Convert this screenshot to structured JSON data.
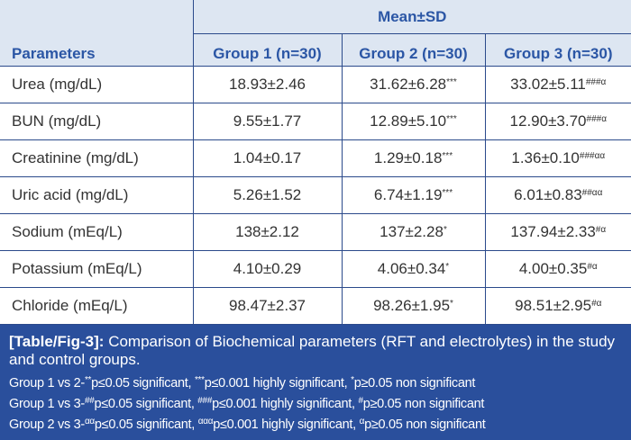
{
  "table": {
    "group_header": "Mean±SD",
    "columns": [
      "Parameters",
      "Group 1 (n=30)",
      "Group 2 (n=30)",
      "Group 3 (n=30)"
    ],
    "rows": [
      {
        "param": "Urea (mg/dL)",
        "g1": "18.93±2.46",
        "g2": "31.62±6.28",
        "g2_sup": "***",
        "g3": "33.02±5.11",
        "g3_sup": "###α"
      },
      {
        "param": "BUN (mg/dL)",
        "g1": "9.55±1.77",
        "g2": "12.89±5.10",
        "g2_sup": "***",
        "g3": "12.90±3.70",
        "g3_sup": "###α"
      },
      {
        "param": "Creatinine (mg/dL)",
        "g1": "1.04±0.17",
        "g2": "1.29±0.18",
        "g2_sup": "***",
        "g3": "1.36±0.10",
        "g3_sup": "###αα"
      },
      {
        "param": "Uric acid (mg/dL)",
        "g1": "5.26±1.52",
        "g2": "6.74±1.19",
        "g2_sup": "***",
        "g3": "6.01±0.83",
        "g3_sup": "##αα"
      },
      {
        "param": "Sodium (mEq/L)",
        "g1": "138±2.12",
        "g2": "137±2.28",
        "g2_sup": "*",
        "g3": "137.94±2.33",
        "g3_sup": "#α"
      },
      {
        "param": "Potassium (mEq/L)",
        "g1": "4.10±0.29",
        "g2": "4.06±0.34",
        "g2_sup": "*",
        "g3": "4.00±0.35",
        "g3_sup": "#α"
      },
      {
        "param": "Chloride (mEq/L)",
        "g1": "98.47±2.37",
        "g2": "98.26±1.95",
        "g2_sup": "*",
        "g3": "98.51±2.95",
        "g3_sup": "#α"
      }
    ]
  },
  "caption": {
    "label": "[Table/Fig-3]:",
    "text": "Comparison of Biochemical parameters (RFT and electrolytes) in the study and control groups.",
    "notes": [
      [
        {
          "t": "Group 1 vs 2-"
        },
        {
          "s": "**"
        },
        {
          "t": "p≤0.05 significant, "
        },
        {
          "s": "***"
        },
        {
          "t": "p≤0.001 highly significant, "
        },
        {
          "s": "*"
        },
        {
          "t": "p≥0.05 non significant"
        }
      ],
      [
        {
          "t": "Group 1 vs 3-"
        },
        {
          "s": "##"
        },
        {
          "t": "p≤0.05 significant, "
        },
        {
          "s": "###"
        },
        {
          "t": "p≤0.001 highly significant, "
        },
        {
          "s": "#"
        },
        {
          "t": "p≥0.05 non significant"
        }
      ],
      [
        {
          "t": "Group 2 vs 3-"
        },
        {
          "s": "αα"
        },
        {
          "t": "p≤0.05 significant, "
        },
        {
          "s": "ααα"
        },
        {
          "t": "p≤0.001 highly significant, "
        },
        {
          "s": "α"
        },
        {
          "t": "p≥0.05 non significant"
        }
      ]
    ]
  }
}
